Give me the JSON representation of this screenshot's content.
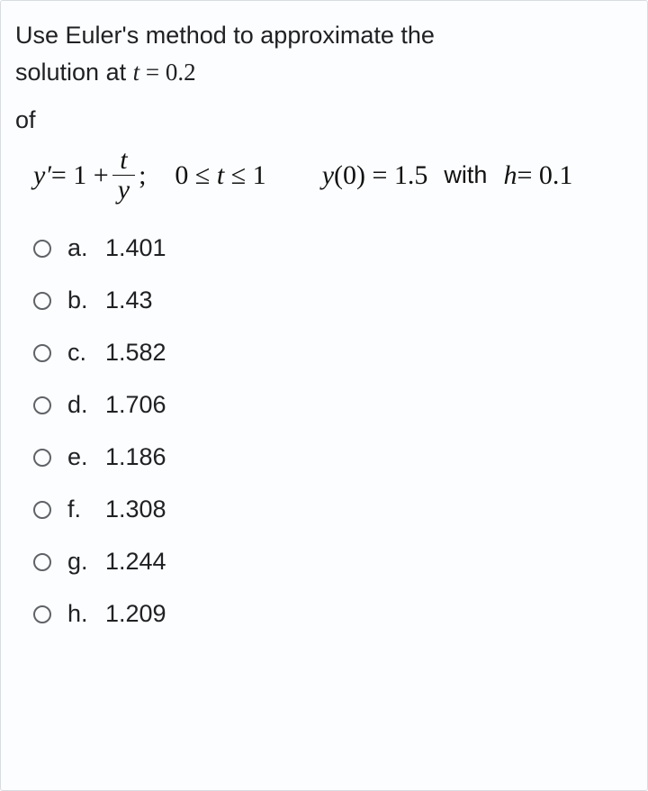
{
  "question": {
    "line1": "Use Euler's method to approximate the",
    "line2_prefix": "solution at ",
    "line2_var": "t",
    "line2_eq": " = 0.2",
    "of": "of"
  },
  "equation": {
    "y_prime": "y′",
    "eq1": " = 1 + ",
    "frac_num": "t",
    "frac_den": "y",
    "semicolon": ";",
    "range": "0 ≤ t ≤ 1",
    "y0_lhs": "y",
    "y0_paren": "(0) = 1.5",
    "with": "with",
    "h_lhs": "h",
    "h_rhs": " = 0.1"
  },
  "options": [
    {
      "letter": "a.",
      "value": "1.401"
    },
    {
      "letter": "b.",
      "value": "1.43"
    },
    {
      "letter": "c.",
      "value": "1.582"
    },
    {
      "letter": "d.",
      "value": "1.706"
    },
    {
      "letter": "e.",
      "value": "1.186"
    },
    {
      "letter": "f.",
      "value": "1.308"
    },
    {
      "letter": "g.",
      "value": "1.244"
    },
    {
      "letter": "h.",
      "value": "1.209"
    }
  ]
}
